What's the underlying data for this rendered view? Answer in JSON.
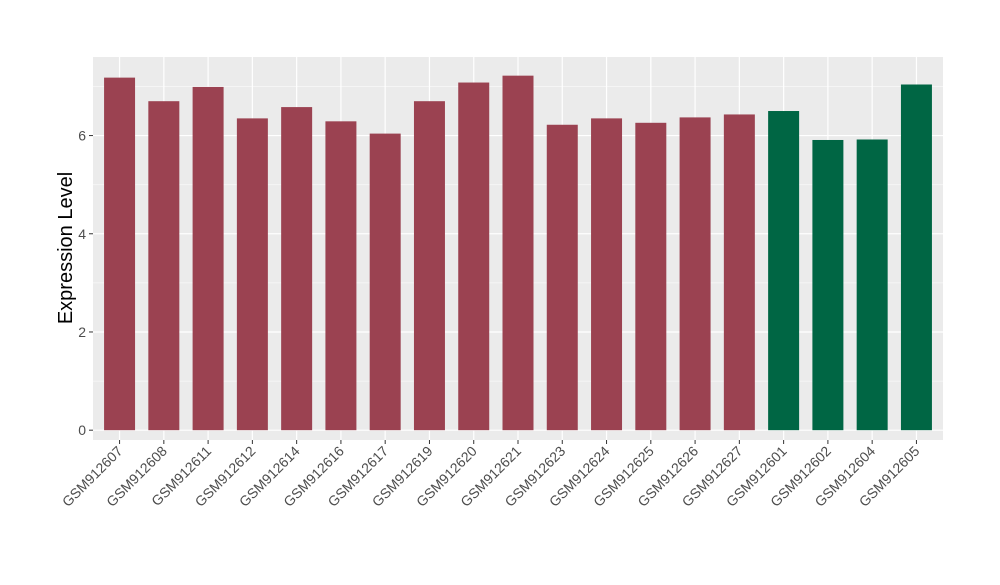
{
  "colors": {
    "panel_background": "#ebebeb",
    "grid_major": "#ffffff",
    "grid_minor": "#f5f5f5",
    "tick_mark": "#333333"
  },
  "chart_data": {
    "type": "bar",
    "title": "",
    "xlabel": "",
    "ylabel": "Expression Level",
    "ylim": [
      -0.2,
      7.6
    ],
    "yticks": [
      0,
      2,
      4,
      6
    ],
    "grid": true,
    "categories": [
      "GSM912607",
      "GSM912608",
      "GSM912611",
      "GSM912612",
      "GSM912614",
      "GSM912616",
      "GSM912617",
      "GSM912619",
      "GSM912620",
      "GSM912621",
      "GSM912623",
      "GSM912624",
      "GSM912625",
      "GSM912626",
      "GSM912627",
      "GSM912601",
      "GSM912602",
      "GSM912604",
      "GSM912605"
    ],
    "values": [
      7.18,
      6.7,
      6.99,
      6.35,
      6.58,
      6.29,
      6.04,
      6.7,
      7.08,
      7.22,
      6.22,
      6.35,
      6.26,
      6.37,
      6.43,
      6.5,
      5.91,
      5.92,
      7.04
    ],
    "bar_colors": [
      "#9b4251",
      "#9b4251",
      "#9b4251",
      "#9b4251",
      "#9b4251",
      "#9b4251",
      "#9b4251",
      "#9b4251",
      "#9b4251",
      "#9b4251",
      "#9b4251",
      "#9b4251",
      "#9b4251",
      "#9b4251",
      "#9b4251",
      "#006644",
      "#006644",
      "#006644",
      "#006644"
    ]
  }
}
